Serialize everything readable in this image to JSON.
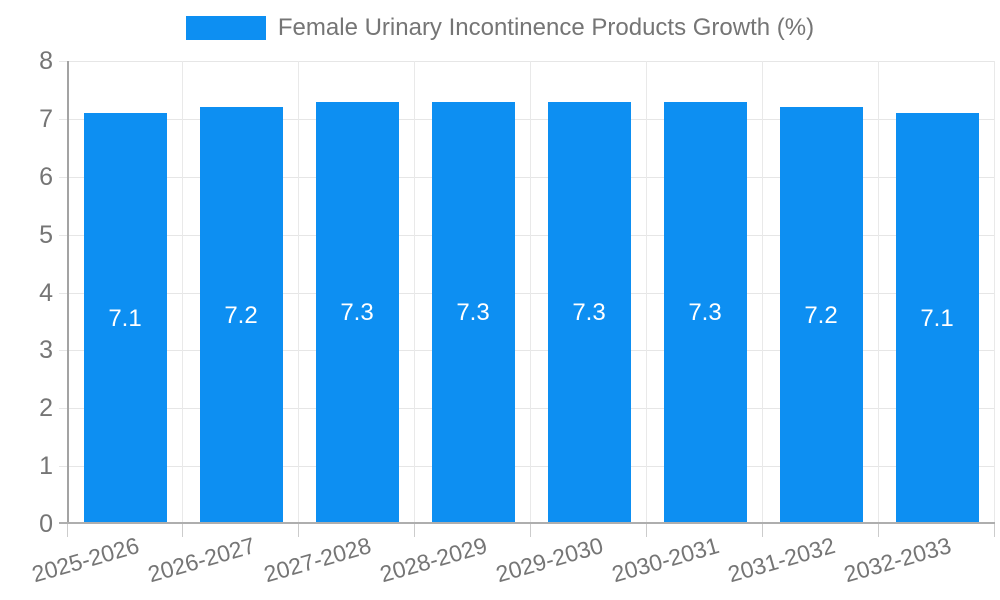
{
  "chart_data": {
    "type": "bar",
    "title": "Female Urinary Incontinence Products Growth (%)",
    "categories": [
      "2025-2026",
      "2026-2027",
      "2027-2028",
      "2028-2029",
      "2029-2030",
      "2030-2031",
      "2031-2032",
      "2032-2033"
    ],
    "series": [
      {
        "name": "Female Urinary Incontinence Products Growth (%)",
        "values": [
          7.1,
          7.2,
          7.3,
          7.3,
          7.3,
          7.3,
          7.2,
          7.1
        ]
      }
    ],
    "bar_labels": [
      "7.1",
      "7.2",
      "7.3",
      "7.3",
      "7.3",
      "7.3",
      "7.2",
      "7.1"
    ],
    "xlabel": "",
    "ylabel": "",
    "ylim": [
      0,
      8
    ],
    "y_ticks": [
      "0",
      "1",
      "2",
      "3",
      "4",
      "5",
      "6",
      "7",
      "8"
    ],
    "grid": true,
    "legend_position": "top",
    "x_label_rotation_deg": -16
  },
  "legend": {
    "label": "Female Urinary Incontinence Products Growth (%)"
  },
  "colors": {
    "bar": "#0d8ff2",
    "bar_label_text": "#ffffff",
    "grid": "#e6e6e6",
    "axis_line": "#a8a8a8",
    "tick_text": "#757575",
    "background": "#ffffff"
  }
}
